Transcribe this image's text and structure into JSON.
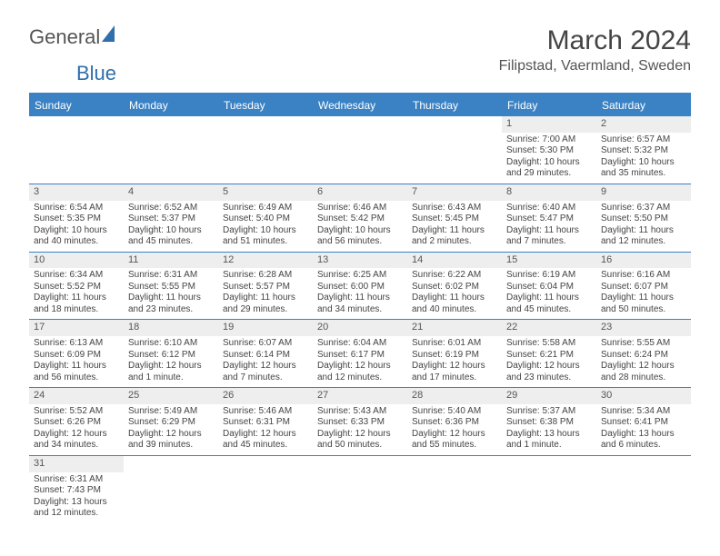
{
  "logo": {
    "part1": "General",
    "part2": "Blue"
  },
  "title": "March 2024",
  "location": "Filipstad, Vaermland, Sweden",
  "colors": {
    "header_bg": "#3b82c4",
    "header_text": "#ffffff",
    "daynum_bg": "#eeeeee",
    "border": "#3b82c4",
    "text": "#444444"
  },
  "dow": [
    "Sunday",
    "Monday",
    "Tuesday",
    "Wednesday",
    "Thursday",
    "Friday",
    "Saturday"
  ],
  "weeks": [
    [
      {
        "n": "",
        "sr": "",
        "ss": "",
        "dl1": "",
        "dl2": ""
      },
      {
        "n": "",
        "sr": "",
        "ss": "",
        "dl1": "",
        "dl2": ""
      },
      {
        "n": "",
        "sr": "",
        "ss": "",
        "dl1": "",
        "dl2": ""
      },
      {
        "n": "",
        "sr": "",
        "ss": "",
        "dl1": "",
        "dl2": ""
      },
      {
        "n": "",
        "sr": "",
        "ss": "",
        "dl1": "",
        "dl2": ""
      },
      {
        "n": "1",
        "sr": "Sunrise: 7:00 AM",
        "ss": "Sunset: 5:30 PM",
        "dl1": "Daylight: 10 hours",
        "dl2": "and 29 minutes."
      },
      {
        "n": "2",
        "sr": "Sunrise: 6:57 AM",
        "ss": "Sunset: 5:32 PM",
        "dl1": "Daylight: 10 hours",
        "dl2": "and 35 minutes."
      }
    ],
    [
      {
        "n": "3",
        "sr": "Sunrise: 6:54 AM",
        "ss": "Sunset: 5:35 PM",
        "dl1": "Daylight: 10 hours",
        "dl2": "and 40 minutes."
      },
      {
        "n": "4",
        "sr": "Sunrise: 6:52 AM",
        "ss": "Sunset: 5:37 PM",
        "dl1": "Daylight: 10 hours",
        "dl2": "and 45 minutes."
      },
      {
        "n": "5",
        "sr": "Sunrise: 6:49 AM",
        "ss": "Sunset: 5:40 PM",
        "dl1": "Daylight: 10 hours",
        "dl2": "and 51 minutes."
      },
      {
        "n": "6",
        "sr": "Sunrise: 6:46 AM",
        "ss": "Sunset: 5:42 PM",
        "dl1": "Daylight: 10 hours",
        "dl2": "and 56 minutes."
      },
      {
        "n": "7",
        "sr": "Sunrise: 6:43 AM",
        "ss": "Sunset: 5:45 PM",
        "dl1": "Daylight: 11 hours",
        "dl2": "and 2 minutes."
      },
      {
        "n": "8",
        "sr": "Sunrise: 6:40 AM",
        "ss": "Sunset: 5:47 PM",
        "dl1": "Daylight: 11 hours",
        "dl2": "and 7 minutes."
      },
      {
        "n": "9",
        "sr": "Sunrise: 6:37 AM",
        "ss": "Sunset: 5:50 PM",
        "dl1": "Daylight: 11 hours",
        "dl2": "and 12 minutes."
      }
    ],
    [
      {
        "n": "10",
        "sr": "Sunrise: 6:34 AM",
        "ss": "Sunset: 5:52 PM",
        "dl1": "Daylight: 11 hours",
        "dl2": "and 18 minutes."
      },
      {
        "n": "11",
        "sr": "Sunrise: 6:31 AM",
        "ss": "Sunset: 5:55 PM",
        "dl1": "Daylight: 11 hours",
        "dl2": "and 23 minutes."
      },
      {
        "n": "12",
        "sr": "Sunrise: 6:28 AM",
        "ss": "Sunset: 5:57 PM",
        "dl1": "Daylight: 11 hours",
        "dl2": "and 29 minutes."
      },
      {
        "n": "13",
        "sr": "Sunrise: 6:25 AM",
        "ss": "Sunset: 6:00 PM",
        "dl1": "Daylight: 11 hours",
        "dl2": "and 34 minutes."
      },
      {
        "n": "14",
        "sr": "Sunrise: 6:22 AM",
        "ss": "Sunset: 6:02 PM",
        "dl1": "Daylight: 11 hours",
        "dl2": "and 40 minutes."
      },
      {
        "n": "15",
        "sr": "Sunrise: 6:19 AM",
        "ss": "Sunset: 6:04 PM",
        "dl1": "Daylight: 11 hours",
        "dl2": "and 45 minutes."
      },
      {
        "n": "16",
        "sr": "Sunrise: 6:16 AM",
        "ss": "Sunset: 6:07 PM",
        "dl1": "Daylight: 11 hours",
        "dl2": "and 50 minutes."
      }
    ],
    [
      {
        "n": "17",
        "sr": "Sunrise: 6:13 AM",
        "ss": "Sunset: 6:09 PM",
        "dl1": "Daylight: 11 hours",
        "dl2": "and 56 minutes."
      },
      {
        "n": "18",
        "sr": "Sunrise: 6:10 AM",
        "ss": "Sunset: 6:12 PM",
        "dl1": "Daylight: 12 hours",
        "dl2": "and 1 minute."
      },
      {
        "n": "19",
        "sr": "Sunrise: 6:07 AM",
        "ss": "Sunset: 6:14 PM",
        "dl1": "Daylight: 12 hours",
        "dl2": "and 7 minutes."
      },
      {
        "n": "20",
        "sr": "Sunrise: 6:04 AM",
        "ss": "Sunset: 6:17 PM",
        "dl1": "Daylight: 12 hours",
        "dl2": "and 12 minutes."
      },
      {
        "n": "21",
        "sr": "Sunrise: 6:01 AM",
        "ss": "Sunset: 6:19 PM",
        "dl1": "Daylight: 12 hours",
        "dl2": "and 17 minutes."
      },
      {
        "n": "22",
        "sr": "Sunrise: 5:58 AM",
        "ss": "Sunset: 6:21 PM",
        "dl1": "Daylight: 12 hours",
        "dl2": "and 23 minutes."
      },
      {
        "n": "23",
        "sr": "Sunrise: 5:55 AM",
        "ss": "Sunset: 6:24 PM",
        "dl1": "Daylight: 12 hours",
        "dl2": "and 28 minutes."
      }
    ],
    [
      {
        "n": "24",
        "sr": "Sunrise: 5:52 AM",
        "ss": "Sunset: 6:26 PM",
        "dl1": "Daylight: 12 hours",
        "dl2": "and 34 minutes."
      },
      {
        "n": "25",
        "sr": "Sunrise: 5:49 AM",
        "ss": "Sunset: 6:29 PM",
        "dl1": "Daylight: 12 hours",
        "dl2": "and 39 minutes."
      },
      {
        "n": "26",
        "sr": "Sunrise: 5:46 AM",
        "ss": "Sunset: 6:31 PM",
        "dl1": "Daylight: 12 hours",
        "dl2": "and 45 minutes."
      },
      {
        "n": "27",
        "sr": "Sunrise: 5:43 AM",
        "ss": "Sunset: 6:33 PM",
        "dl1": "Daylight: 12 hours",
        "dl2": "and 50 minutes."
      },
      {
        "n": "28",
        "sr": "Sunrise: 5:40 AM",
        "ss": "Sunset: 6:36 PM",
        "dl1": "Daylight: 12 hours",
        "dl2": "and 55 minutes."
      },
      {
        "n": "29",
        "sr": "Sunrise: 5:37 AM",
        "ss": "Sunset: 6:38 PM",
        "dl1": "Daylight: 13 hours",
        "dl2": "and 1 minute."
      },
      {
        "n": "30",
        "sr": "Sunrise: 5:34 AM",
        "ss": "Sunset: 6:41 PM",
        "dl1": "Daylight: 13 hours",
        "dl2": "and 6 minutes."
      }
    ],
    [
      {
        "n": "31",
        "sr": "Sunrise: 6:31 AM",
        "ss": "Sunset: 7:43 PM",
        "dl1": "Daylight: 13 hours",
        "dl2": "and 12 minutes."
      },
      {
        "n": "",
        "sr": "",
        "ss": "",
        "dl1": "",
        "dl2": ""
      },
      {
        "n": "",
        "sr": "",
        "ss": "",
        "dl1": "",
        "dl2": ""
      },
      {
        "n": "",
        "sr": "",
        "ss": "",
        "dl1": "",
        "dl2": ""
      },
      {
        "n": "",
        "sr": "",
        "ss": "",
        "dl1": "",
        "dl2": ""
      },
      {
        "n": "",
        "sr": "",
        "ss": "",
        "dl1": "",
        "dl2": ""
      },
      {
        "n": "",
        "sr": "",
        "ss": "",
        "dl1": "",
        "dl2": ""
      }
    ]
  ]
}
